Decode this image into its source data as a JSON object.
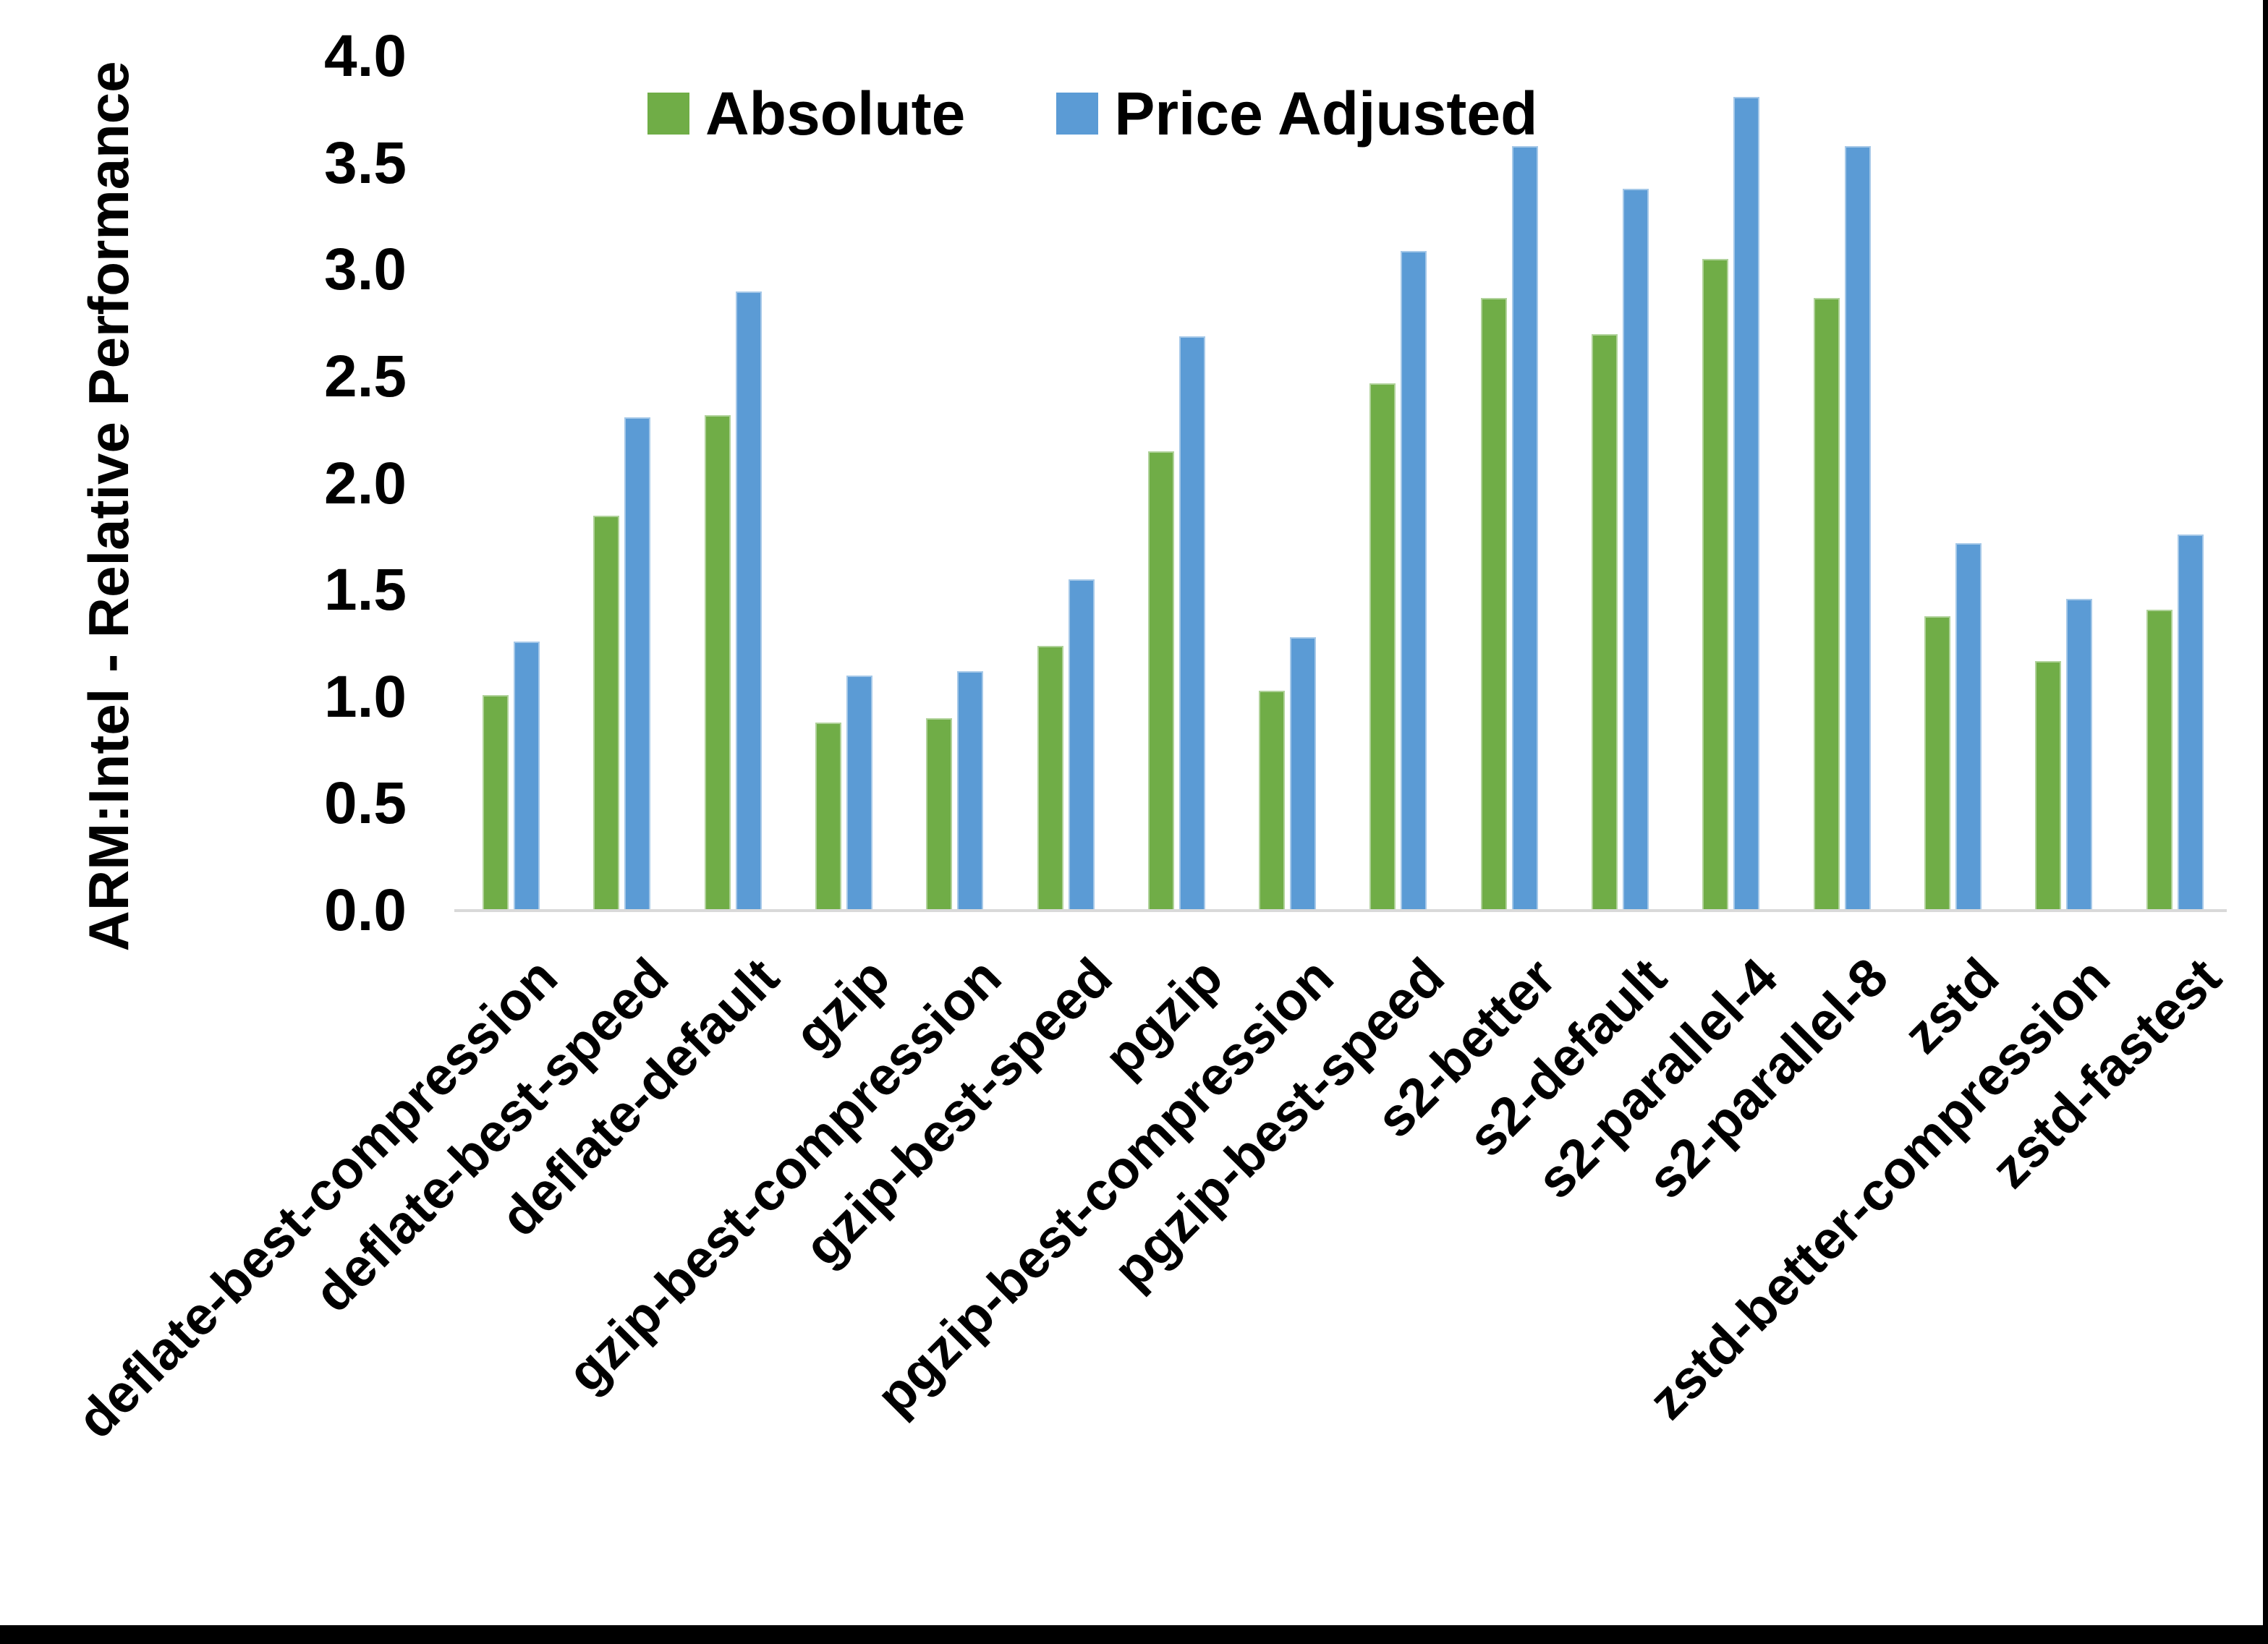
{
  "chart_data": {
    "type": "bar",
    "title": "",
    "xlabel": "",
    "ylabel": "ARM:Intel - Relative Performance",
    "ylim": [
      0.0,
      4.0
    ],
    "ytick_step": 0.5,
    "ytick_labels": [
      "0.0",
      "0.5",
      "1.0",
      "1.5",
      "2.0",
      "2.5",
      "3.0",
      "3.5",
      "4.0"
    ],
    "grid": false,
    "legend_position": "top-center",
    "axis_line_color": "#d9d9d9",
    "categories": [
      "deflate-best-compression",
      "deflate-best-speed",
      "deflate-default",
      "gzip",
      "gzip-best-compression",
      "gzip-best-speed",
      "pgzip",
      "pgzip-best-compression",
      "pgzip-best-speed",
      "s2-better",
      "s2-default",
      "s2-parallel-4",
      "s2-parallel-8",
      "zstd",
      "zstd-better-compression",
      "zstd-fastest"
    ],
    "series": [
      {
        "name": "Absolute",
        "color": "#70AD47",
        "values": [
          1.01,
          1.85,
          2.32,
          0.88,
          0.9,
          1.24,
          2.15,
          1.03,
          2.47,
          2.87,
          2.7,
          3.05,
          2.87,
          1.38,
          1.17,
          1.41
        ]
      },
      {
        "name": "Price Adjusted",
        "color": "#5B9BD5",
        "values": [
          1.26,
          2.31,
          2.9,
          1.1,
          1.12,
          1.55,
          2.69,
          1.28,
          3.09,
          3.58,
          3.38,
          3.81,
          3.58,
          1.72,
          1.46,
          1.76
        ]
      }
    ]
  }
}
